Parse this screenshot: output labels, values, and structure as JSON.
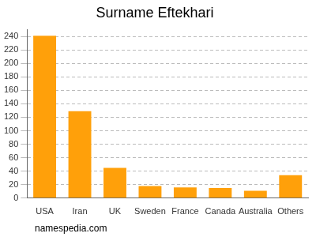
{
  "chart_data": {
    "type": "bar",
    "title": "Surname Eftekhari",
    "categories": [
      "USA",
      "Iran",
      "UK",
      "Sweden",
      "France",
      "Canada",
      "Australia",
      "Others"
    ],
    "values": [
      241,
      129,
      45,
      18,
      16,
      15,
      11,
      34
    ],
    "color": "#ffa00a",
    "ylim": [
      0,
      250
    ],
    "yticks": [
      0,
      20,
      40,
      60,
      80,
      100,
      120,
      140,
      160,
      180,
      200,
      220,
      240
    ],
    "grid": true,
    "annotations": [
      "namespedia.com"
    ]
  }
}
